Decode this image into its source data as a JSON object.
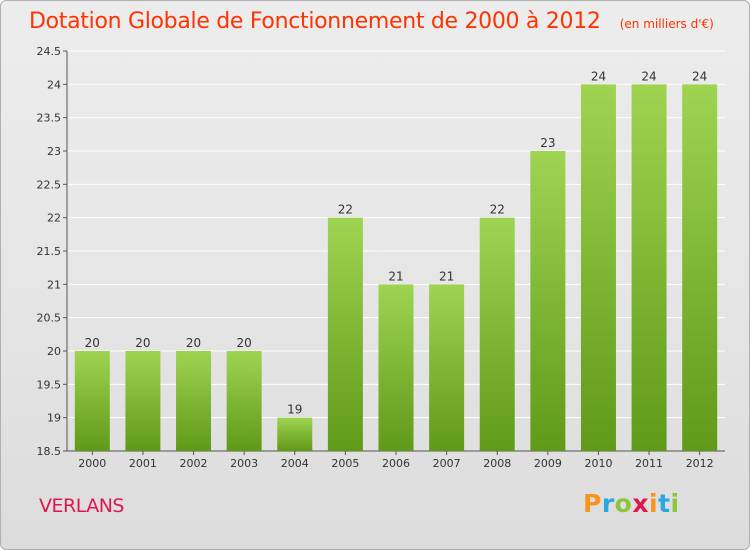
{
  "title": "Dotation Globale de Fonctionnement de 2000 à 2012",
  "unit": "(en milliers d'€)",
  "place": "VERLANS",
  "logo": {
    "letters": [
      "P",
      "r",
      "o",
      "x",
      "i",
      "t",
      "i"
    ],
    "colors": [
      "#f7931e",
      "#29a9e0",
      "#8cc63f",
      "#e0174f",
      "#f7931e",
      "#29a9e0",
      "#8cc63f"
    ]
  },
  "colors": {
    "title": "#ff3300",
    "place": "#e0174f",
    "bar_light": "#9fd452",
    "bar_dark": "#5f9a18",
    "gridline": "#ffffff",
    "axis": "#555555"
  },
  "chart_data": {
    "type": "bar",
    "categories": [
      "2000",
      "2001",
      "2002",
      "2003",
      "2004",
      "2005",
      "2006",
      "2007",
      "2008",
      "2009",
      "2010",
      "2011",
      "2012"
    ],
    "values": [
      20,
      20,
      20,
      20,
      19,
      22,
      21,
      21,
      22,
      23,
      24,
      24,
      24
    ],
    "data_labels": [
      "20",
      "20",
      "20",
      "20",
      "19",
      "22",
      "21",
      "21",
      "22",
      "23",
      "24",
      "24",
      "24"
    ],
    "yticks": [
      "18.5",
      "19",
      "19.5",
      "20",
      "20.5",
      "21",
      "21.5",
      "22",
      "22.5",
      "23",
      "23.5",
      "24",
      "24.5"
    ],
    "ylim": [
      18.5,
      24.5
    ],
    "grid": true,
    "legend": "none"
  }
}
